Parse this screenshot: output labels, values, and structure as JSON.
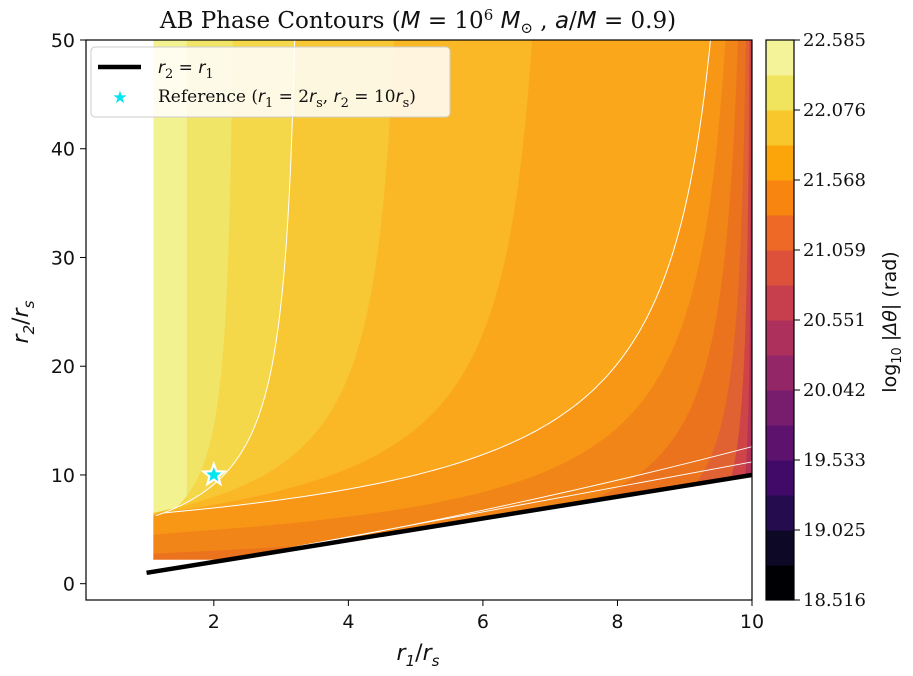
{
  "chart_data": {
    "type": "contour",
    "title": "AB Phase Contours (M = 10⁶ M⊙ , a/M = 0.9)",
    "xlabel": "r1/rs",
    "ylabel": "r2/rs",
    "xlim": [
      0.1,
      10
    ],
    "ylim": [
      -1.5,
      50
    ],
    "x_ticks": [
      2,
      4,
      6,
      8,
      10
    ],
    "y_ticks": [
      0,
      10,
      20,
      30,
      40,
      50
    ],
    "colorbar": {
      "label": "log10 |Δθ| (rad)",
      "range": [
        18.516,
        22.585
      ],
      "ticks": [
        "18.516",
        "19.025",
        "19.533",
        "20.042",
        "20.551",
        "21.059",
        "21.568",
        "22.076",
        "22.585"
      ],
      "colormap": "inferno",
      "levels": 16
    },
    "contour_bands": [
      {
        "x_at_top": 1.6,
        "x_at_y10": 1.6,
        "color": "#f3f290"
      },
      {
        "x_at_top": 2.35,
        "x_at_y10": 1.78,
        "color": "#f1e567"
      },
      {
        "x_at_top": 3.35,
        "x_at_y10": 2.15,
        "color": "#f5d74a"
      },
      {
        "x_at_top": 4.95,
        "x_at_y10": 2.75,
        "color": "#f8c734"
      },
      {
        "x_at_top": 7.15,
        "x_at_y10": 3.75,
        "color": "#fab826"
      },
      {
        "x_at_top": 10.0,
        "x_at_y10": 5.0,
        "color": "#fba71c"
      },
      {
        "x_at_top": 10.0,
        "x_at_y10": 6.8,
        "color": "#f89615"
      },
      {
        "x_at_top": 10.0,
        "x_at_y10": 8.3,
        "color": "#f28517"
      },
      {
        "x_at_top": 10.0,
        "x_at_y10": 9.25,
        "color": "#eb731e"
      },
      {
        "x_at_top": 10.0,
        "x_at_y10": 9.7,
        "color": "#e06232"
      },
      {
        "x_at_top": 10.0,
        "x_at_y10": 9.9,
        "color": "#cf4446"
      },
      {
        "x_at_top": 10.0,
        "x_at_y10": 10.0,
        "color": "#b53359"
      }
    ],
    "white_contours": [
      {
        "x_at_top": 3.35,
        "x_at_y10": 2.15
      },
      {
        "x_at_top": 10.0,
        "x_at_y10": 5.0
      }
    ],
    "series": [
      {
        "name": "r2 = r1",
        "x": [
          1,
          10
        ],
        "y": [
          1,
          10
        ],
        "color": "#000000"
      },
      {
        "name": "Reference (r1 = 2rs, r2 = 10rs)",
        "x": [
          2
        ],
        "y": [
          10
        ],
        "color": "#00e5ee",
        "marker": "star"
      }
    ],
    "legend_position": "upper-left"
  }
}
